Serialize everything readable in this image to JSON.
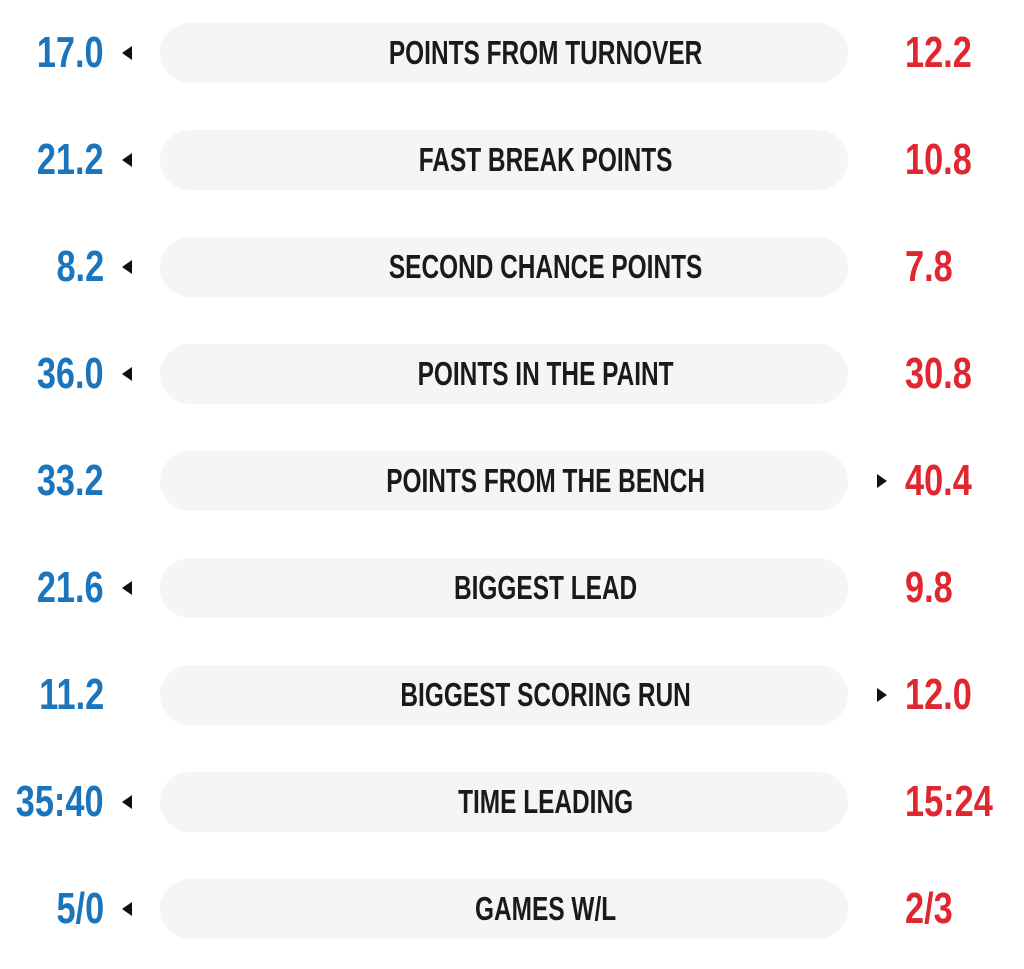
{
  "rows": [
    {
      "label": "POINTS FROM TURNOVER",
      "left": "17.0",
      "right": "12.2",
      "arrow": "left"
    },
    {
      "label": "FAST BREAK POINTS",
      "left": "21.2",
      "right": "10.8",
      "arrow": "left"
    },
    {
      "label": "SECOND CHANCE POINTS",
      "left": "8.2",
      "right": "7.8",
      "arrow": "left"
    },
    {
      "label": "POINTS IN THE PAINT",
      "left": "36.0",
      "right": "30.8",
      "arrow": "left"
    },
    {
      "label": "POINTS FROM THE BENCH",
      "left": "33.2",
      "right": "40.4",
      "arrow": "right"
    },
    {
      "label": "BIGGEST LEAD",
      "left": "21.6",
      "right": "9.8",
      "arrow": "left"
    },
    {
      "label": "BIGGEST SCORING RUN",
      "left": "11.2",
      "right": "12.0",
      "arrow": "right"
    },
    {
      "label": "TIME LEADING",
      "left": "35:40",
      "right": "15:24",
      "arrow": "left"
    },
    {
      "label": "GAMES W/L",
      "left": "5/0",
      "right": "2/3",
      "arrow": "left"
    }
  ]
}
